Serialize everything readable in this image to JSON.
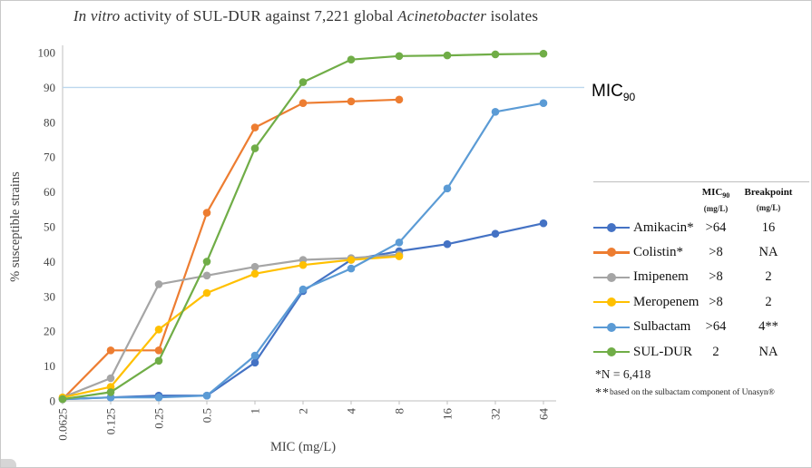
{
  "title": {
    "full": "In vitro activity of SUL-DUR against 7,221 global Acinetobacter isolates",
    "italic1": "In vitro",
    "text1": " activity of SUL-DUR  against 7,221 global ",
    "italic2": "Acinetobacter",
    "text2": " isolates"
  },
  "chart_data": {
    "type": "line",
    "title": "In vitro activity of SUL-DUR against 7,221 global Acinetobacter isolates",
    "xlabel": "MIC (mg/L)",
    "ylabel": "% susceptible strains",
    "ylim": [
      0,
      100
    ],
    "y_ticks": [
      0,
      10,
      20,
      30,
      40,
      50,
      60,
      70,
      80,
      90,
      100
    ],
    "x_categories": [
      "0.0625",
      "0.125",
      "0.25",
      "0.5",
      "1",
      "2",
      "4",
      "8",
      "16",
      "32",
      "64"
    ],
    "grid": false,
    "legend_position": "right",
    "reference_line": {
      "y": 90,
      "label": "MIC90",
      "color": "#BDD7EE"
    },
    "series": [
      {
        "name": "Amikacin*",
        "color": "#4472C4",
        "mic90": ">64",
        "breakpoint": "16",
        "values": [
          0.5,
          1,
          1.5,
          1.5,
          11,
          31.5,
          40.5,
          43,
          45,
          48,
          51
        ]
      },
      {
        "name": "Colistin*",
        "color": "#ED7D31",
        "mic90": ">8",
        "breakpoint": "NA",
        "values": [
          0.5,
          14.5,
          14.5,
          54,
          78.5,
          85.5,
          86,
          86.5,
          null,
          null,
          null
        ]
      },
      {
        "name": "Imipenem",
        "color": "#A5A5A5",
        "mic90": ">8",
        "breakpoint": "2",
        "values": [
          1,
          6.5,
          33.5,
          36,
          38.5,
          40.5,
          41,
          42,
          null,
          null,
          null
        ]
      },
      {
        "name": "Meropenem",
        "color": "#FFC000",
        "mic90": ">8",
        "breakpoint": "2",
        "values": [
          1,
          4,
          20.5,
          31,
          36.5,
          39,
          40.5,
          41.5,
          null,
          null,
          null
        ]
      },
      {
        "name": "Sulbactam",
        "color": "#5B9BD5",
        "mic90": ">64",
        "breakpoint": "4**",
        "values": [
          0.5,
          1,
          1,
          1.5,
          13,
          32,
          38,
          45.5,
          61,
          83,
          85.5
        ]
      },
      {
        "name": "SUL-DUR",
        "color": "#70AD47",
        "mic90": "2",
        "breakpoint": "NA",
        "values": [
          0.5,
          2.5,
          11.5,
          40,
          72.5,
          91.5,
          98,
          99,
          99.2,
          99.5,
          99.7
        ]
      }
    ]
  },
  "ref_label": {
    "text": "MIC",
    "sub": "90"
  },
  "legend": {
    "col1_header": "MIC",
    "col1_sub": "90",
    "col1_unit": "(mg/L)",
    "col2_header": "Breakpoint",
    "col2_unit": "(mg/L)"
  },
  "footnotes": {
    "note1": "*N = 6,418",
    "note2_stars": "**",
    "note2_text": "based on the sulbactam component of Unasyn®"
  }
}
